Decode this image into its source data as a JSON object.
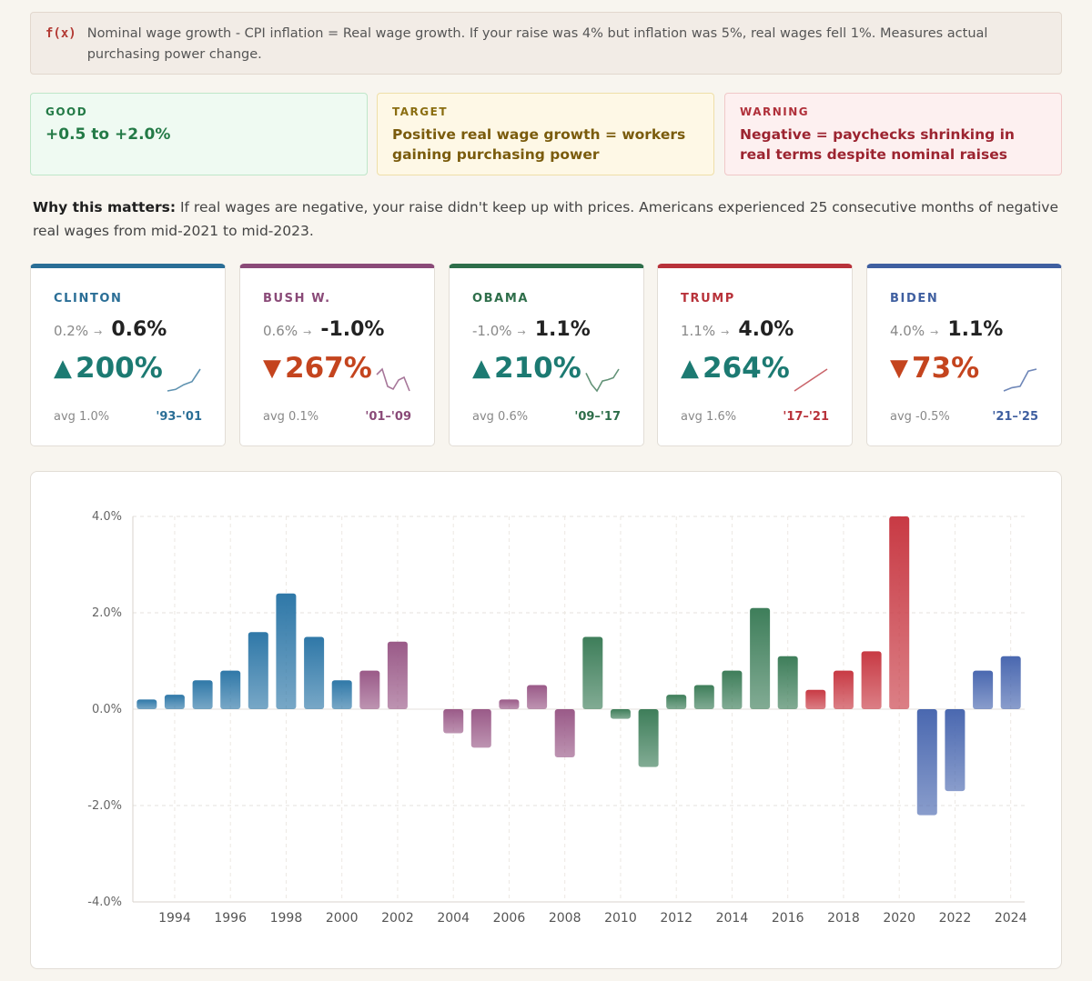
{
  "formula": {
    "label": "f(x)",
    "text": "Nominal wage growth - CPI inflation = Real wage growth. If your raise was 4% but inflation was 5%, real wages fell 1%. Measures actual purchasing power change."
  },
  "status": {
    "good": {
      "label": "GOOD",
      "value": "+0.5 to +2.0%"
    },
    "target": {
      "label": "TARGET",
      "value": "Positive real wage growth = workers gaining purchasing power"
    },
    "warning": {
      "label": "WARNING",
      "value": "Negative = paychecks shrinking in real terms despite nominal raises"
    }
  },
  "why": {
    "label": "Why this matters:",
    "text": " If real wages are negative, your raise didn't keep up with prices. Americans experienced 25 consecutive months of negative real wages from mid-2021 to mid-2023."
  },
  "presidents": [
    {
      "name": "CLINTON",
      "from": "0.2%",
      "arrow": "→",
      "to": "0.6%",
      "dir": "▲",
      "change": "200%",
      "avg": "avg 1.0%",
      "years": "'93–'01",
      "color": "#2a6e96",
      "trend": "up",
      "spark": [
        0.2,
        0.3,
        0.6,
        0.8,
        1.6
      ]
    },
    {
      "name": "BUSH W.",
      "from": "0.6%",
      "arrow": "→",
      "to": "-1.0%",
      "dir": "▼",
      "change": "267%",
      "avg": "avg 0.1%",
      "years": "'01–'09",
      "color": "#8a4a78",
      "trend": "down",
      "spark": [
        0.8,
        1.4,
        -0.5,
        -0.8,
        0.2,
        0.5,
        -1.0
      ]
    },
    {
      "name": "OBAMA",
      "from": "-1.0%",
      "arrow": "→",
      "to": "1.1%",
      "dir": "▲",
      "change": "210%",
      "avg": "avg 0.6%",
      "years": "'09–'17",
      "color": "#2e6e4a",
      "trend": "up",
      "spark": [
        1.5,
        -0.2,
        -1.2,
        0.3,
        0.5,
        0.8,
        2.1
      ]
    },
    {
      "name": "TRUMP",
      "from": "1.1%",
      "arrow": "→",
      "to": "4.0%",
      "dir": "▲",
      "change": "264%",
      "avg": "avg 1.6%",
      "years": "'17–'21",
      "color": "#b8323a",
      "trend": "up",
      "spark": [
        0.4,
        0.6,
        0.8,
        1.0
      ]
    },
    {
      "name": "BIDEN",
      "from": "4.0%",
      "arrow": "→",
      "to": "1.1%",
      "dir": "▼",
      "change": "73%",
      "avg": "avg -0.5%",
      "years": "'21–'25",
      "color": "#3f5fa0",
      "trend": "down",
      "spark": [
        -2.2,
        -1.7,
        -1.5,
        0.8,
        1.1
      ]
    }
  ],
  "chart_data": {
    "type": "bar",
    "title": "",
    "xlabel": "",
    "ylabel": "",
    "ylim": [
      -4,
      4
    ],
    "yticks": [
      "4.0%",
      "2.0%",
      "0.0%",
      "-2.0%",
      "-4.0%"
    ],
    "xticks": [
      "1994",
      "1996",
      "1998",
      "2000",
      "2002",
      "2004",
      "2006",
      "2008",
      "2010",
      "2012",
      "2014",
      "2016",
      "2018",
      "2020",
      "2022",
      "2024"
    ],
    "grid": true,
    "series": [
      {
        "name": "Clinton",
        "color": "#2f78a8",
        "x": [
          1993,
          1994,
          1995,
          1996,
          1997,
          1998,
          1999,
          2000
        ],
        "values": [
          0.2,
          0.3,
          0.6,
          0.8,
          1.6,
          2.4,
          1.5,
          0.6
        ]
      },
      {
        "name": "Bush W.",
        "color": "#9a5a88",
        "x": [
          2001,
          2002,
          2004,
          2005,
          2006,
          2007,
          2008
        ],
        "values": [
          0.8,
          1.4,
          -0.5,
          -0.8,
          0.2,
          0.5,
          -1.0
        ]
      },
      {
        "name": "Obama",
        "color": "#3e7e5a",
        "x": [
          2009,
          2010,
          2011,
          2012,
          2013,
          2014,
          2015,
          2016
        ],
        "values": [
          1.5,
          -0.2,
          -1.2,
          0.3,
          0.5,
          0.8,
          2.1,
          1.1
        ]
      },
      {
        "name": "Trump",
        "color": "#c83a44",
        "x": [
          2017,
          2018,
          2019,
          2020
        ],
        "values": [
          0.4,
          0.8,
          1.2,
          4.0
        ]
      },
      {
        "name": "Biden",
        "color": "#4a68b0",
        "x": [
          2021,
          2022,
          2023,
          2024
        ],
        "values": [
          -2.2,
          -1.7,
          0.8,
          1.1
        ]
      }
    ]
  }
}
